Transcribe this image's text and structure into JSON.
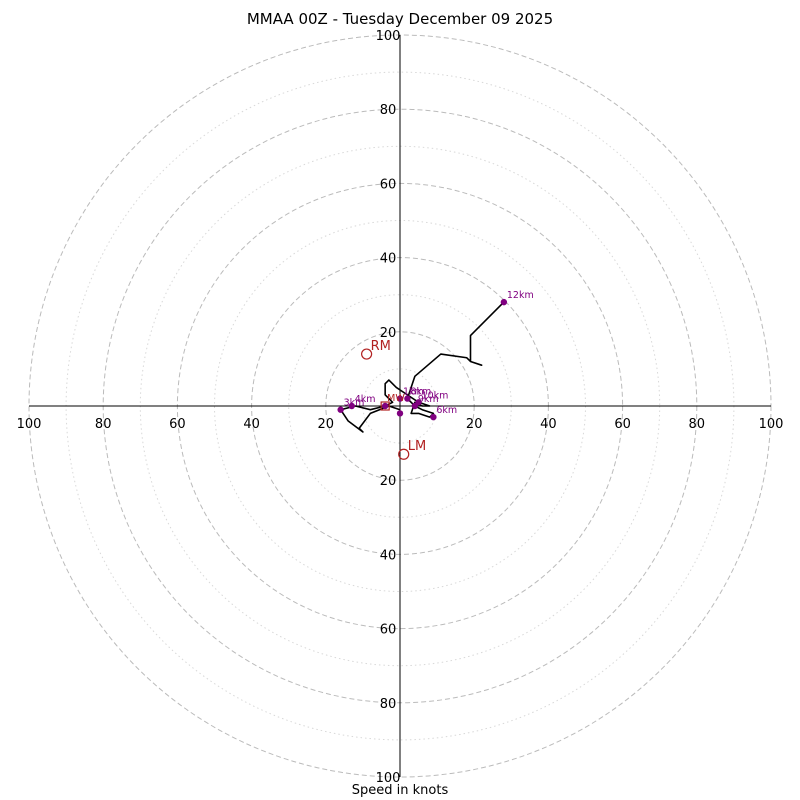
{
  "chart_data": {
    "type": "hodograph",
    "title": "MMAA 00Z - Tuesday December 09 2025",
    "xlabel": "Speed in knots",
    "units": "knots",
    "max_speed": 100,
    "major_rings": [
      20,
      40,
      60,
      80,
      100
    ],
    "minor_rings": [
      10,
      30,
      50,
      70,
      90
    ],
    "x_tick_labels": [
      "100",
      "80",
      "60",
      "40",
      "20",
      "20",
      "40",
      "60",
      "80",
      "100"
    ],
    "y_tick_labels": [
      "100",
      "80",
      "60",
      "40",
      "20",
      "20",
      "40",
      "60",
      "80",
      "100"
    ],
    "trace": [
      [
        0,
        -1
      ],
      [
        -3,
        0
      ],
      [
        -8,
        -2
      ],
      [
        -11,
        -6
      ],
      [
        -10,
        -7
      ],
      [
        -14,
        -4
      ],
      [
        -16,
        -1
      ],
      [
        -12,
        0
      ],
      [
        -8,
        -1
      ],
      [
        -4,
        0
      ],
      [
        -2,
        1
      ],
      [
        -4,
        3
      ],
      [
        -4,
        6
      ],
      [
        -3,
        7
      ],
      [
        -1,
        5
      ],
      [
        2,
        3
      ],
      [
        5,
        1
      ],
      [
        8,
        0
      ],
      [
        6,
        0
      ],
      [
        4,
        1
      ],
      [
        3,
        -2
      ],
      [
        5,
        -2
      ],
      [
        8,
        -3
      ],
      [
        9,
        -2
      ],
      [
        6,
        -1
      ],
      [
        4,
        0
      ],
      [
        2,
        2
      ],
      [
        4,
        8
      ],
      [
        11,
        14
      ],
      [
        18,
        13
      ],
      [
        19,
        12
      ],
      [
        22,
        11
      ],
      [
        19,
        12
      ],
      [
        19,
        19
      ],
      [
        28,
        28
      ]
    ],
    "height_markers": [
      {
        "label": "1km",
        "u": 0,
        "v": 2
      },
      {
        "label": "3km",
        "u": -16,
        "v": -1
      },
      {
        "label": "4km",
        "u": -13,
        "v": 0
      },
      {
        "label": "6km",
        "u": 9,
        "v": -3
      },
      {
        "label": "8km",
        "u": 2,
        "v": 2
      },
      {
        "label": "9km",
        "u": 4,
        "v": 0
      },
      {
        "label": "10km",
        "u": 5,
        "v": 1
      },
      {
        "label": "",
        "u": 0,
        "v": -2
      },
      {
        "label": "",
        "u": -4,
        "v": 0
      },
      {
        "label": "12km",
        "u": 28,
        "v": 28
      }
    ],
    "storm_motion": [
      {
        "label": "RM",
        "u": -9,
        "v": 14
      },
      {
        "label": "LM",
        "u": 1,
        "v": -13
      }
    ],
    "mean_wind_label": "MW",
    "mean_wind": {
      "u": -4,
      "v": 0
    },
    "colors": {
      "trace": "#000000",
      "markers": "#800080",
      "storm_motion": "#b22222",
      "major_ring": "#bbbbbb",
      "minor_ring": "#d8d8d8"
    }
  }
}
